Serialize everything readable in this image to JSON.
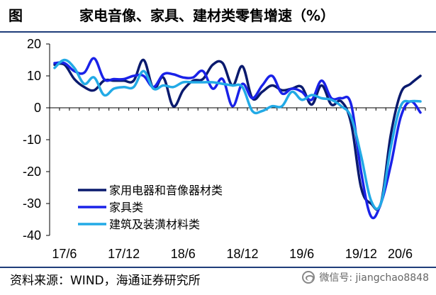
{
  "header": {
    "figure_label": "图",
    "title": "家电音像、家具、建材类零售增速（%）"
  },
  "footer": {
    "source": "资料来源：WIND，海通证券研究所",
    "watermark": "微信号: jiangchao8848",
    "watermark_icon": "wechat-icon"
  },
  "chart_data": {
    "type": "line",
    "title": "家电音像、家具、建材类零售增速（%）",
    "xlabel": "",
    "ylabel": "",
    "ylim": [
      -40,
      20
    ],
    "yticks": [
      20,
      10,
      0,
      -10,
      -20,
      -30,
      -40
    ],
    "xtick_labels": [
      "17/6",
      "17/12",
      "18/6",
      "18/12",
      "19/6",
      "19/12",
      "20/6"
    ],
    "grid": false,
    "legend_position": "bottom-left",
    "x": [
      "17/5",
      "17/6",
      "17/7",
      "17/8",
      "17/9",
      "17/10",
      "17/11",
      "17/12",
      "18/1",
      "18/2",
      "18/3",
      "18/4",
      "18/5",
      "18/6",
      "18/7",
      "18/8",
      "18/9",
      "18/10",
      "18/11",
      "18/12",
      "19/1",
      "19/2",
      "19/3",
      "19/4",
      "19/5",
      "19/6",
      "19/7",
      "19/8",
      "19/9",
      "19/10",
      "19/11",
      "19/12",
      "20/1",
      "20/2",
      "20/3",
      "20/4",
      "20/5",
      "20/6"
    ],
    "series": [
      {
        "name": "家用电器和音像器材类",
        "color": "#0a1a6e",
        "values": [
          13.5,
          13.5,
          9.0,
          6.5,
          5.5,
          8.5,
          8.5,
          8.5,
          8.5,
          15.0,
          6.0,
          9.5,
          0.5,
          5.5,
          8.5,
          9.0,
          13.5,
          14.0,
          7.0,
          13.0,
          3.0,
          5.0,
          7.0,
          5.5,
          6.0,
          6.5,
          1.0,
          7.0,
          1.0,
          2.0,
          -5.0,
          -25.0,
          -30.0,
          -30.0,
          -8.5,
          4.5,
          7.5,
          10.0
        ]
      },
      {
        "name": "家具类",
        "color": "#1a22e8",
        "values": [
          14.0,
          14.0,
          11.5,
          11.0,
          15.5,
          9.0,
          9.0,
          9.0,
          10.0,
          10.0,
          6.5,
          10.5,
          10.5,
          9.5,
          9.5,
          11.5,
          6.0,
          9.0,
          0.5,
          7.5,
          3.0,
          7.0,
          10.0,
          4.5,
          6.0,
          5.0,
          2.5,
          8.5,
          3.0,
          3.0,
          1.0,
          -20.0,
          -34.0,
          -30.0,
          -18.0,
          -3.0,
          2.0,
          -1.5
        ]
      },
      {
        "name": "建筑及装潢材料类",
        "color": "#22aae6",
        "values": [
          12.5,
          15.0,
          12.5,
          7.5,
          9.5,
          4.0,
          6.0,
          6.5,
          6.5,
          11.5,
          6.0,
          7.0,
          6.5,
          8.0,
          8.0,
          8.0,
          8.0,
          7.5,
          7.0,
          6.5,
          -1.0,
          -1.0,
          0.5,
          0.5,
          5.0,
          2.5,
          4.0,
          3.0,
          2.5,
          0.5,
          -3.0,
          -15.0,
          -29.0,
          -30.0,
          -12.5,
          0.5,
          2.0,
          2.0
        ]
      }
    ]
  }
}
